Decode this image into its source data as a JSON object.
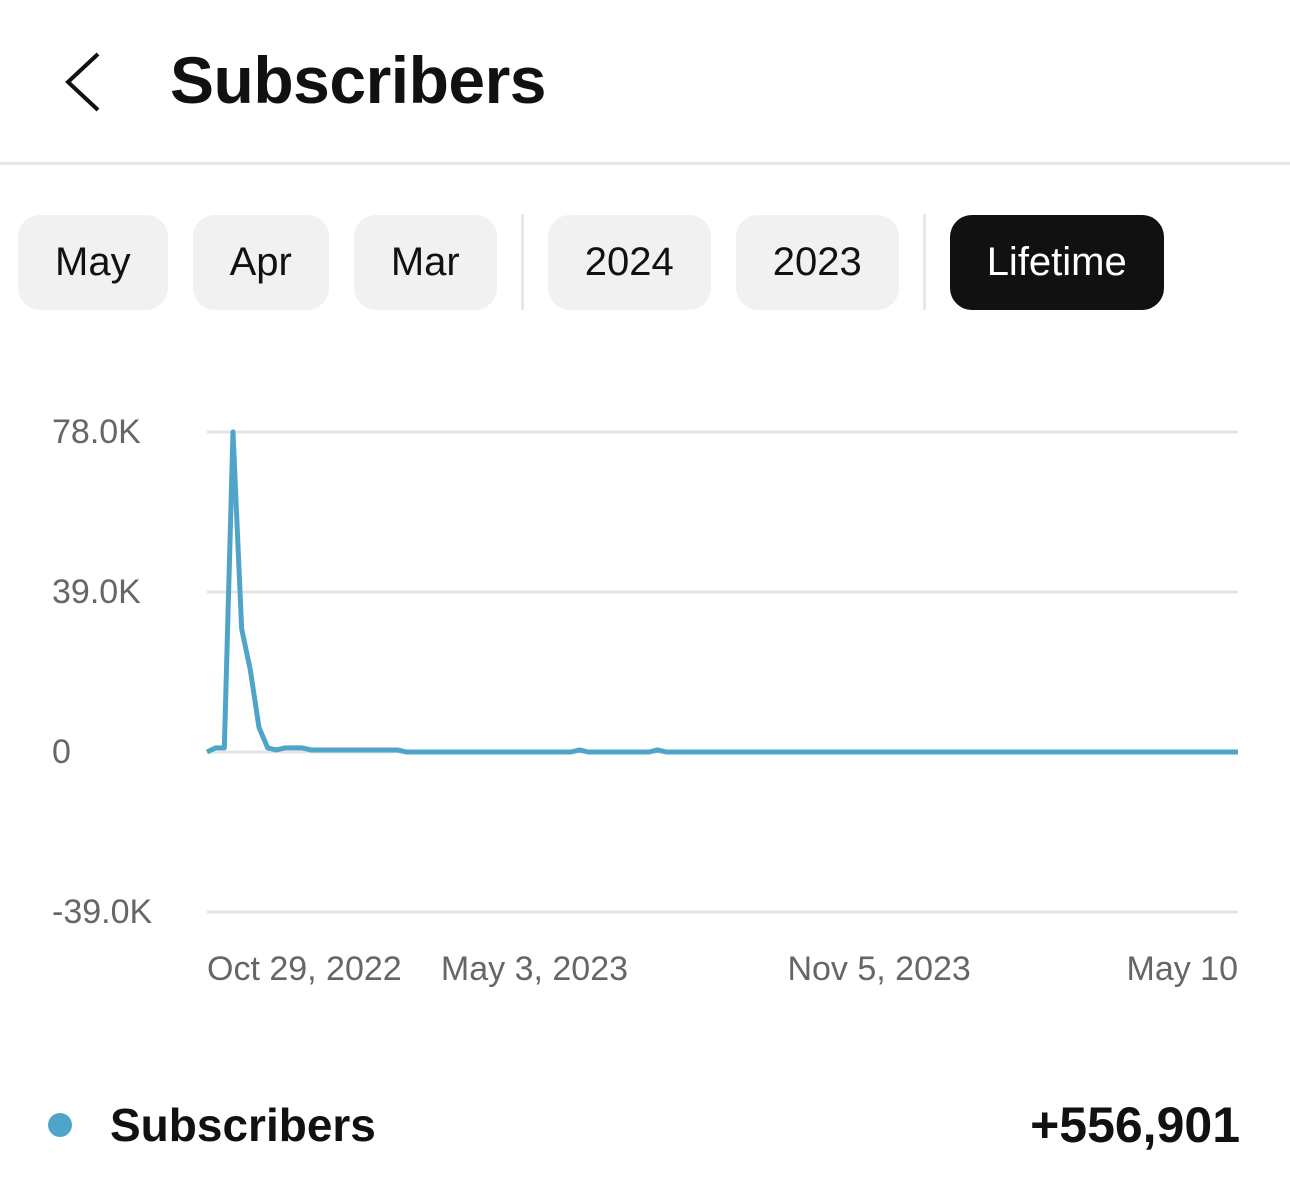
{
  "header": {
    "title": "Subscribers"
  },
  "tab_groups": [
    [
      {
        "label": "May",
        "active": false
      },
      {
        "label": "Apr",
        "active": false
      },
      {
        "label": "Mar",
        "active": false
      }
    ],
    [
      {
        "label": "2024",
        "active": false
      },
      {
        "label": "2023",
        "active": false
      }
    ],
    [
      {
        "label": "Lifetime",
        "active": true
      }
    ]
  ],
  "chart_data": {
    "type": "line",
    "categories": [
      "Oct 29, 2022",
      null,
      null,
      null,
      null,
      null,
      null,
      null,
      null,
      null,
      null,
      null,
      null,
      null,
      null,
      null,
      null,
      null,
      null,
      null,
      null,
      null,
      null,
      null,
      null,
      null,
      null,
      "May 3, 2023",
      null,
      null,
      null,
      null,
      null,
      null,
      null,
      null,
      null,
      null,
      null,
      null,
      null,
      null,
      null,
      null,
      null,
      null,
      null,
      null,
      null,
      null,
      null,
      null,
      null,
      null,
      null,
      null,
      null,
      null,
      null,
      null,
      null,
      null,
      null,
      null,
      null,
      null,
      null,
      "Nov 5, 2023",
      null,
      null,
      null,
      null,
      null,
      null,
      null,
      null,
      null,
      null,
      null,
      null,
      null,
      null,
      null,
      null,
      null,
      null,
      null,
      null,
      null,
      null,
      null,
      null,
      null,
      null,
      null,
      null,
      null,
      null,
      null,
      null,
      null,
      null,
      null,
      null,
      null,
      null,
      null,
      null,
      null,
      null,
      null,
      null,
      null,
      null,
      null,
      null,
      null,
      null,
      null,
      "May 10"
    ],
    "series": [
      {
        "name": "Subscribers",
        "color": "#4ea5c9",
        "values": [
          0,
          1000,
          1000,
          78000,
          30000,
          20000,
          6000,
          1000,
          500,
          1000,
          1000,
          1000,
          500,
          500,
          500,
          500,
          500,
          500,
          500,
          500,
          500,
          500,
          500,
          0,
          0,
          0,
          0,
          0,
          0,
          0,
          0,
          0,
          0,
          0,
          0,
          0,
          0,
          0,
          0,
          0,
          0,
          0,
          0,
          500,
          0,
          0,
          0,
          0,
          0,
          0,
          0,
          0,
          500,
          0,
          0,
          0,
          0,
          0,
          0,
          0,
          0,
          0,
          0,
          0,
          0,
          0,
          0,
          0,
          0,
          0,
          0,
          0,
          0,
          0,
          0,
          0,
          0,
          0,
          0,
          0,
          0,
          0,
          0,
          0,
          0,
          0,
          0,
          0,
          0,
          0,
          0,
          0,
          0,
          0,
          0,
          0,
          0,
          0,
          0,
          0,
          0,
          0,
          0,
          0,
          0,
          0,
          0,
          0,
          0,
          0,
          0,
          0,
          0,
          0,
          0,
          0,
          0,
          0,
          0,
          0
        ]
      }
    ],
    "ylim": [
      -39000,
      78000
    ],
    "yticks": [
      {
        "value": 78000,
        "label": "78.0K"
      },
      {
        "value": 39000,
        "label": "39.0K"
      },
      0,
      {
        "value": -39000,
        "label": "-39.0K"
      }
    ],
    "grid": true
  },
  "summary": {
    "total": "+556,901"
  }
}
